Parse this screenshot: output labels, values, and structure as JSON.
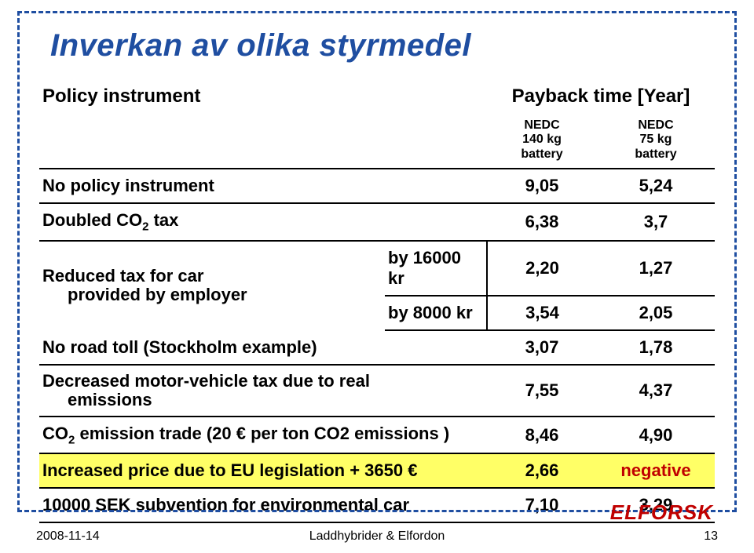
{
  "slide": {
    "title": "Inverkan av olika styrmedel",
    "logo": "ELFORSK"
  },
  "table": {
    "header": {
      "policy_instrument": "Policy instrument",
      "payback_time": "Payback time [Year]",
      "col1_l1": "NEDC",
      "col1_l2": "140 kg",
      "col1_l3": "battery",
      "col2_l1": "NEDC",
      "col2_l2": "75 kg",
      "col2_l3": "battery"
    },
    "rows": {
      "r1": {
        "label": "No policy instrument",
        "v1": "9,05",
        "v2": "5,24"
      },
      "r2": {
        "label_html": "Doubled CO<span class='subfix'>2</span> tax",
        "v1": "6,38",
        "v2": "3,7"
      },
      "r3a": {
        "label_top": "Reduced tax for car",
        "label_bottom": "provided by employer",
        "kr": "by 16000 kr",
        "v1": "2,20",
        "v2": "1,27"
      },
      "r3b": {
        "kr": "by 8000 kr",
        "v1": "3,54",
        "v2": "2,05"
      },
      "r4": {
        "label": "No road toll (Stockholm example)",
        "v1": "3,07",
        "v2": "1,78"
      },
      "r5": {
        "label_l1": "Decreased motor-vehicle tax due to real",
        "label_l2": "emissions",
        "v1": "7,55",
        "v2": "4,37"
      },
      "r6": {
        "label_html": "CO<span class='subfix'>2</span> emission trade (20 € per ton CO2 emissions )",
        "v1": "8,46",
        "v2": "4,90"
      },
      "r7": {
        "label": "Increased price due to EU legislation + 3650 €",
        "v1": "2,66",
        "v2": "negative"
      },
      "r8": {
        "label": "10000 SEK subvention for environmental car",
        "v1": "7,10",
        "v2": "3,29"
      }
    }
  },
  "footer": {
    "date": "2008-11-14",
    "center": "Laddhybrider & Elfordon",
    "page": "13"
  },
  "colors": {
    "title": "#1f4ea1",
    "border": "#1f4ea1",
    "highlight": "#FFFF66",
    "negative": "#c00000",
    "logo": "#c00000"
  }
}
